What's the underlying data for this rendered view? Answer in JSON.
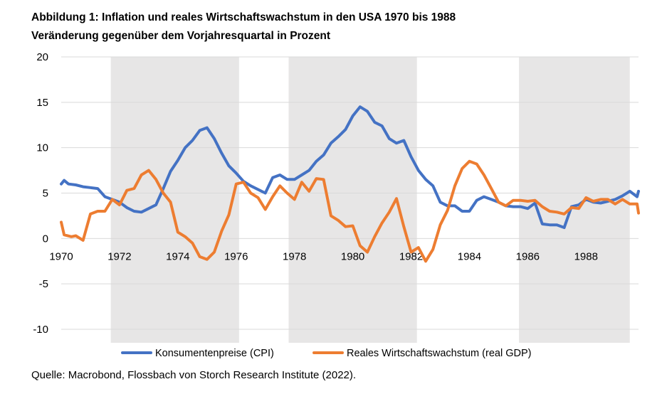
{
  "figure": {
    "title": "Abbildung 1: Inflation und reales Wirtschaftswachstum in den USA 1970 bis 1988",
    "subtitle": "Veränderung gegenüber dem Vorjahresquartal in Prozent",
    "source": "Quelle: Macrobond, Flossbach von Storch Research Institute (2022)."
  },
  "chart_data": {
    "type": "line",
    "title": "Abbildung 1: Inflation und reales Wirtschaftswachstum in den USA 1970 bis 1988",
    "subtitle": "Veränderung gegenüber dem Vorjahresquartal in Prozent",
    "xlabel": "",
    "ylabel": "",
    "xlim": [
      1970,
      1989.8
    ],
    "ylim": [
      -12,
      20
    ],
    "yticks": [
      20,
      15,
      10,
      5,
      0,
      -5,
      -10
    ],
    "xticks": [
      1970,
      1972,
      1974,
      1976,
      1978,
      1980,
      1982,
      1984,
      1986,
      1988
    ],
    "grid": true,
    "legend": "bottom",
    "recession_shading": [
      [
        1971.7,
        1976.1
      ],
      [
        1977.8,
        1982.2
      ],
      [
        1985.7,
        1989.5
      ]
    ],
    "colors": {
      "cpi": "#4472C4",
      "gdp": "#ED7D31",
      "shade": "#E7E6E6",
      "grid": "#D9D9D9"
    },
    "series": [
      {
        "name": "Konsumentenpreise (CPI)",
        "x": [
          1970.0,
          1970.1,
          1970.25,
          1970.5,
          1970.75,
          1971.0,
          1971.25,
          1971.5,
          1971.75,
          1972.0,
          1972.25,
          1972.5,
          1972.75,
          1973.0,
          1973.25,
          1973.5,
          1973.75,
          1974.0,
          1974.25,
          1974.5,
          1974.75,
          1975.0,
          1975.25,
          1975.5,
          1975.75,
          1976.0,
          1976.25,
          1976.5,
          1976.75,
          1977.0,
          1977.25,
          1977.5,
          1977.75,
          1978.0,
          1978.25,
          1978.5,
          1978.75,
          1979.0,
          1979.25,
          1979.5,
          1979.75,
          1980.0,
          1980.25,
          1980.5,
          1980.75,
          1981.0,
          1981.25,
          1981.5,
          1981.75,
          1982.0,
          1982.25,
          1982.5,
          1982.75,
          1983.0,
          1983.25,
          1983.5,
          1983.75,
          1984.0,
          1984.25,
          1984.5,
          1984.75,
          1985.0,
          1985.25,
          1985.5,
          1985.75,
          1986.0,
          1986.25,
          1986.5,
          1986.75,
          1987.0,
          1987.25,
          1987.5,
          1987.75,
          1988.0,
          1988.25,
          1988.5,
          1988.75,
          1989.0,
          1989.25,
          1989.5,
          1989.75,
          1989.8
        ],
        "values": [
          6.0,
          6.4,
          6.0,
          5.9,
          5.7,
          5.6,
          5.5,
          4.6,
          4.3,
          4.0,
          3.4,
          3.0,
          2.9,
          3.3,
          3.7,
          5.5,
          7.4,
          8.6,
          10.0,
          10.8,
          11.9,
          12.2,
          11.0,
          9.4,
          8.0,
          7.2,
          6.3,
          5.8,
          5.4,
          5.0,
          6.7,
          7.0,
          6.5,
          6.5,
          7.0,
          7.5,
          8.5,
          9.2,
          10.5,
          11.2,
          12.0,
          13.5,
          14.5,
          14.0,
          12.8,
          12.4,
          11.0,
          10.5,
          10.8,
          9.0,
          7.5,
          6.5,
          5.8,
          4.0,
          3.6,
          3.6,
          3.0,
          3.0,
          4.2,
          4.6,
          4.3,
          4.0,
          3.6,
          3.5,
          3.5,
          3.3,
          3.9,
          1.6,
          1.5,
          1.5,
          1.2,
          3.5,
          3.7,
          4.3,
          4.0,
          3.9,
          4.1,
          4.3,
          4.7,
          5.2,
          4.6,
          5.2
        ]
      },
      {
        "name": "Reales Wirtschaftswachstum (real GDP)",
        "x": [
          1970.0,
          1970.1,
          1970.35,
          1970.5,
          1970.75,
          1971.0,
          1971.25,
          1971.5,
          1971.75,
          1972.0,
          1972.25,
          1972.5,
          1972.75,
          1973.0,
          1973.25,
          1973.5,
          1973.75,
          1974.0,
          1974.25,
          1974.5,
          1974.75,
          1975.0,
          1975.25,
          1975.5,
          1975.75,
          1976.0,
          1976.25,
          1976.5,
          1976.75,
          1977.0,
          1977.25,
          1977.5,
          1977.75,
          1978.0,
          1978.25,
          1978.5,
          1978.75,
          1979.0,
          1979.25,
          1979.5,
          1979.75,
          1980.0,
          1980.25,
          1980.5,
          1980.75,
          1981.0,
          1981.25,
          1981.5,
          1981.75,
          1982.0,
          1982.25,
          1982.5,
          1982.75,
          1983.0,
          1983.25,
          1983.5,
          1983.75,
          1984.0,
          1984.25,
          1984.5,
          1984.75,
          1985.0,
          1985.25,
          1985.5,
          1985.75,
          1986.0,
          1986.25,
          1986.5,
          1986.75,
          1987.0,
          1987.25,
          1987.5,
          1987.75,
          1988.0,
          1988.25,
          1988.5,
          1988.75,
          1989.0,
          1989.25,
          1989.5,
          1989.75,
          1989.8
        ],
        "values": [
          1.8,
          0.4,
          0.2,
          0.3,
          -0.2,
          2.7,
          3.0,
          3.0,
          4.3,
          3.7,
          5.3,
          5.5,
          7.0,
          7.5,
          6.5,
          5.0,
          4.0,
          0.7,
          0.2,
          -0.5,
          -2.0,
          -2.3,
          -1.5,
          0.8,
          2.6,
          6.0,
          6.2,
          5.0,
          4.5,
          3.2,
          4.6,
          5.8,
          5.0,
          4.3,
          6.2,
          5.2,
          6.6,
          6.5,
          2.5,
          2.0,
          1.3,
          1.4,
          -0.8,
          -1.5,
          0.2,
          1.7,
          2.9,
          4.4,
          1.3,
          -1.5,
          -1.0,
          -2.5,
          -1.2,
          1.5,
          3.1,
          5.8,
          7.7,
          8.5,
          8.2,
          7.0,
          5.5,
          4.0,
          3.6,
          4.2,
          4.2,
          4.1,
          4.2,
          3.5,
          3.0,
          2.9,
          2.7,
          3.4,
          3.3,
          4.5,
          4.1,
          4.3,
          4.3,
          3.8,
          4.3,
          3.8,
          3.8,
          2.8
        ]
      }
    ]
  }
}
